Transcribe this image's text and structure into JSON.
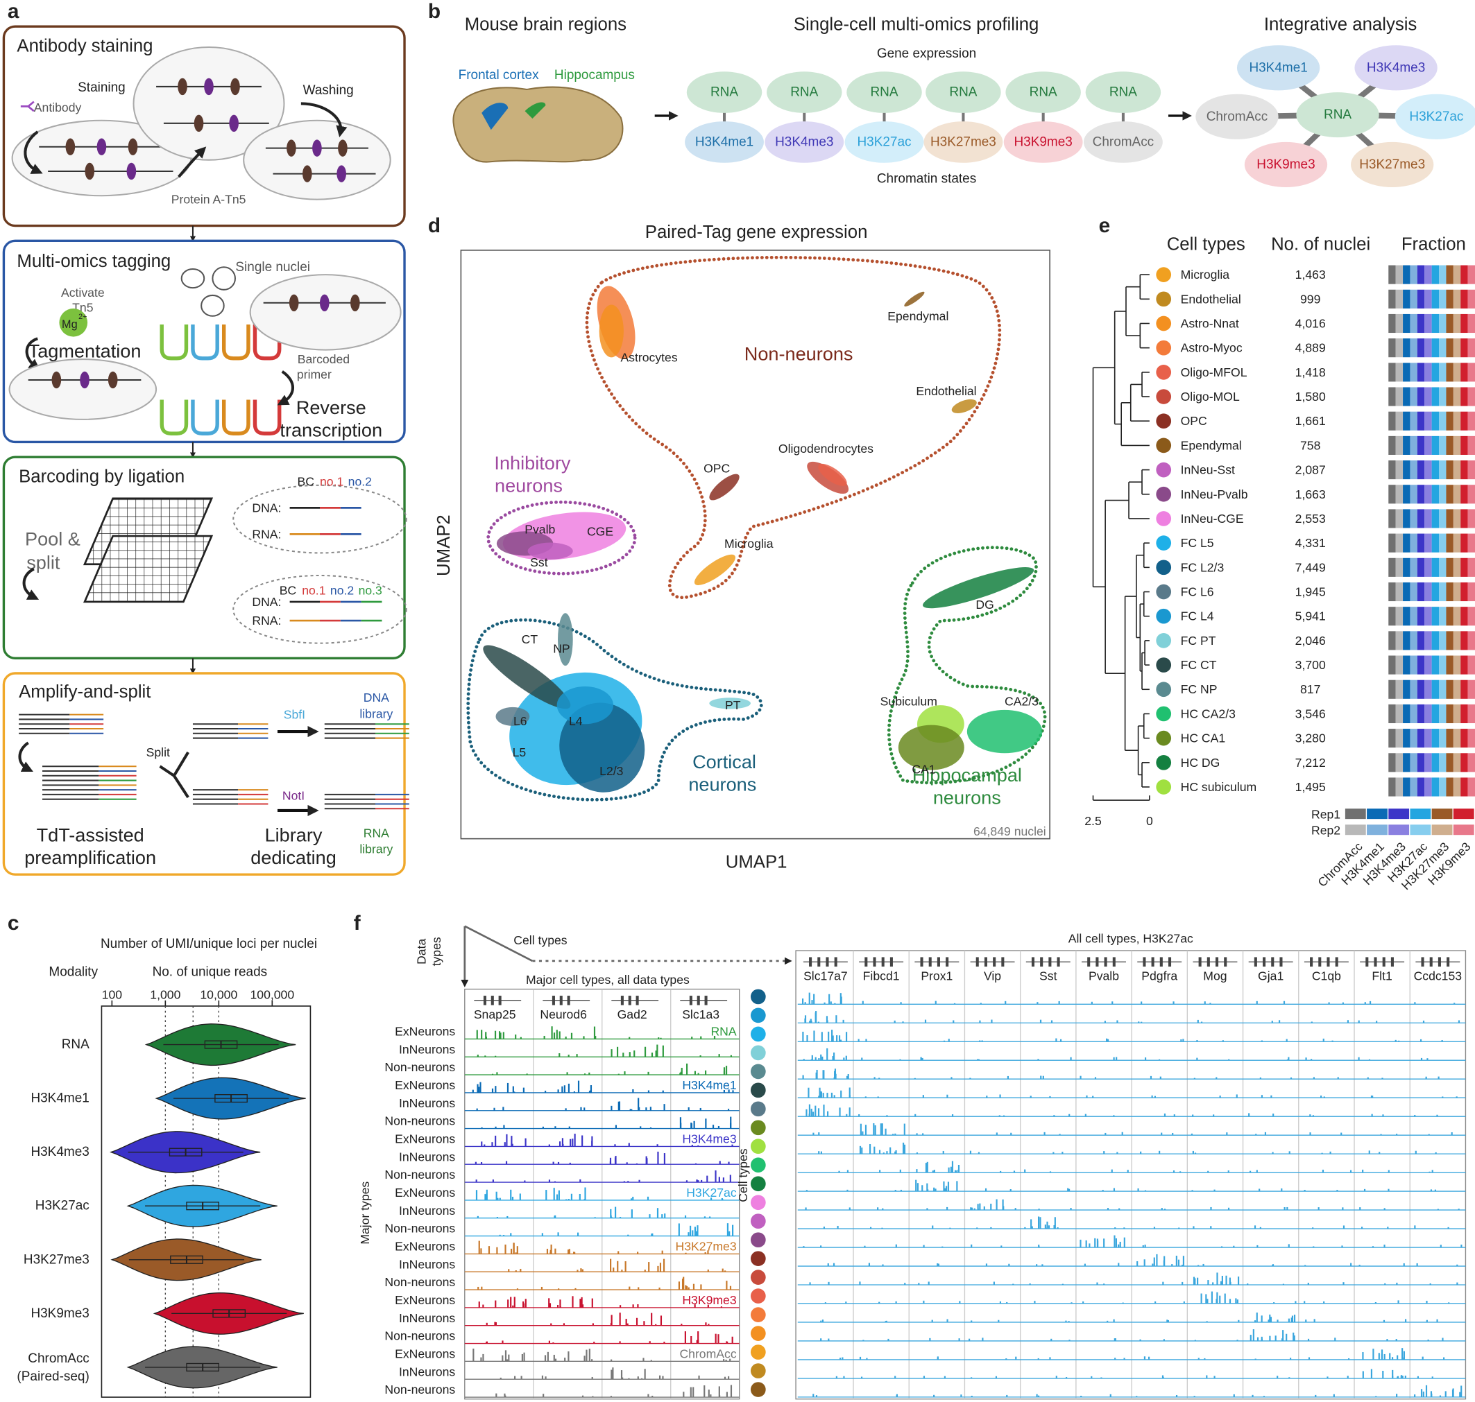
{
  "panel_a": {
    "label": "a",
    "staining": {
      "title": "Antibody staining",
      "staining": "Staining",
      "washing": "Washing",
      "antibody": "Antibody",
      "protein": "Protein A-Tn5"
    },
    "tagging": {
      "title": "Multi-omics tagging",
      "activate": [
        "Activate",
        "Tn5"
      ],
      "mg": "Mg",
      "mg_charge": "2+",
      "nuclei": "Single nuclei",
      "tagmentation": "Tagmentation",
      "primer": [
        "Barcoded",
        "primer"
      ],
      "rt": [
        "Reverse",
        "transcription"
      ]
    },
    "ligation": {
      "title": "Barcoding by ligation",
      "pool": [
        "Pool &",
        "split"
      ],
      "first": {
        "dna": "DNA:",
        "rna": "RNA:",
        "bc": "BC",
        "codes": [
          "no.1",
          "no.2"
        ]
      },
      "second": {
        "dna": "DNA:",
        "rna": "RNA:",
        "bc": "BC",
        "codes": [
          "no.1",
          "no.2",
          "no.3"
        ]
      }
    },
    "amplify": {
      "title": "Amplify-and-split",
      "split": "Split",
      "sbf": "SbfI",
      "not": "NotI",
      "dna_lib": [
        "DNA",
        "library"
      ],
      "rna_lib": [
        "RNA",
        "library"
      ],
      "preamp": [
        "TdT-assisted",
        "preamplification"
      ],
      "dedicate": [
        "Library",
        "dedicating"
      ]
    }
  },
  "panel_b": {
    "label": "b",
    "headings": [
      "Mouse brain regions",
      "Single-cell multi-omics profiling",
      "Integrative analysis"
    ],
    "regions": [
      "Frontal cortex",
      "Hippocampus"
    ],
    "top_note": "Gene expression",
    "bottom_note": "Chromatin states",
    "rna": [
      "RNA",
      "RNA",
      "RNA",
      "RNA",
      "RNA",
      "RNA"
    ],
    "marks": [
      "H3K4me1",
      "H3K4me3",
      "H3K27ac",
      "H3K27me3",
      "H3K9me3",
      "ChromAcc"
    ],
    "hub": "RNA",
    "spokes": [
      "H3K4me1",
      "H3K4me3",
      "ChromAcc",
      "H3K27ac",
      "H3K9me3",
      "H3K27me3"
    ]
  },
  "panel_c": {
    "label": "c",
    "type": "violin",
    "title": "Number of UMI/unique loci per nuclei",
    "ylabel": "Modality",
    "xlabel": "No. of unique reads",
    "xscale": "log",
    "xlim": [
      64,
      520000
    ],
    "xticks": [
      100,
      {
        "value": 1000,
        "label": "1,000"
      },
      {
        "value": 10000,
        "label": "10,000"
      },
      {
        "value": 100000,
        "label": "100,000"
      }
    ],
    "reference_lines": [
      1000,
      3300,
      10000
    ],
    "categories": [
      "RNA",
      "H3K4me1",
      "H3K4me3",
      "H3K27ac",
      "H3K27me3",
      "H3K9me3",
      "ChromAcc"
    ],
    "category_note": "(Paired-seq)",
    "medians": [
      11000,
      17000,
      2400,
      5000,
      2500,
      15600,
      5000
    ],
    "colors": [
      "#1e7a36",
      "#1473b8",
      "#3b32c8",
      "#2fa6e0",
      "#9a5a28",
      "#c8102e",
      "#666666"
    ]
  },
  "panel_d": {
    "label": "d",
    "title": "Paired-Tag gene expression",
    "xlabel": "UMAP1",
    "ylabel": "UMAP2",
    "note": "64,849 nuclei",
    "groups": [
      {
        "name": [
          "Non-neurons"
        ],
        "clusters": [
          "Astrocytes",
          "Ependymal",
          "Endothelial",
          "Oligodendrocytes",
          "OPC",
          "Microglia"
        ]
      },
      {
        "name": [
          "Inhibitory",
          "neurons"
        ],
        "clusters": [
          "Pvalb",
          "CGE",
          "Sst"
        ]
      },
      {
        "name": [
          "Cortical",
          "neurons"
        ],
        "clusters": [
          "CT",
          "NP",
          "L6",
          "L4",
          "L5",
          "L2/3",
          "PT"
        ]
      },
      {
        "name": [
          "Hippocampal",
          "neurons"
        ],
        "clusters": [
          "DG",
          "Subiculum",
          "CA2/3",
          "CA1"
        ]
      }
    ]
  },
  "panel_e": {
    "label": "e",
    "headers": [
      "Cell types",
      "No. of nuclei",
      "Fraction"
    ],
    "cell_types": [
      "Microglia",
      "Endothelial",
      "Astro-Nnat",
      "Astro-Myoc",
      "Oligo-MFOL",
      "Oligo-MOL",
      "OPC",
      "Ependymal",
      "InNeu-Sst",
      "InNeu-Pvalb",
      "InNeu-CGE",
      "FC L5",
      "FC L2/3",
      "FC L6",
      "FC L4",
      "FC PT",
      "FC CT",
      "FC NP",
      "HC CA2/3",
      "HC CA1",
      "HC DG",
      "HC subiculum"
    ],
    "nuclei": [
      "1,463",
      "999",
      "4,016",
      "4,889",
      "1,418",
      "1,580",
      "1,661",
      "758",
      "2,087",
      "1,663",
      "2,553",
      "4,331",
      "7,449",
      "1,945",
      "5,941",
      "2,046",
      "3,700",
      "817",
      "3,546",
      "3,280",
      "7,212",
      "1,495"
    ],
    "colors": [
      "#f0a020",
      "#c08a20",
      "#f39020",
      "#f37b3a",
      "#e8604a",
      "#c84b3c",
      "#8b3023",
      "#8b5a1a",
      "#c060c0",
      "#8a4a8a",
      "#ee80e0",
      "#1eb0e8",
      "#12608a",
      "#5a7a8a",
      "#1a98d0",
      "#80d0d8",
      "#2a4a4a",
      "#5a8a90",
      "#20c070",
      "#6a8a20",
      "#148040",
      "#a0e040"
    ],
    "scale": [
      2.5,
      0
    ],
    "legend": {
      "rows": [
        "Rep1",
        "Rep2"
      ],
      "modalities": [
        "ChromAcc",
        "H3K4me1",
        "H3K4me3",
        "H3K27ac",
        "H3K27me3",
        "H3K9me3"
      ],
      "rep1_colors": [
        "#707070",
        "#0a6ab5",
        "#3c35c8",
        "#23a5e0",
        "#9a5a28",
        "#d11f2e"
      ],
      "rep2_colors": [
        "#b8b8b8",
        "#7fb1dd",
        "#8a80e0",
        "#86cdee",
        "#cfae8e",
        "#e8788a"
      ]
    }
  },
  "panel_f": {
    "label": "f",
    "data_types": [
      "Data",
      "types"
    ],
    "cell_types_axis": "Cell types",
    "left_title": "Major cell types, all data types",
    "left_genes": [
      "Snap25",
      "Neurod6",
      "Gad2",
      "Slc1a3"
    ],
    "majors": [
      "ExNeurons",
      "InNeurons",
      "Non-neurons"
    ],
    "modalities": [
      "RNA",
      "H3K4me1",
      "H3K4me3",
      "H3K27ac",
      "H3K27me3",
      "H3K9me3",
      "ChromAcc"
    ],
    "track_colors": [
      "#2e9a3e",
      "#0a6ab5",
      "#3c35c8",
      "#2fa6e0",
      "#c8782a",
      "#c8102e",
      "#777777"
    ],
    "left_axis": "Major types",
    "right_title": "All cell types, H3K27ac",
    "right_genes": [
      "Slc17a7",
      "Fibcd1",
      "Prox1",
      "Vip",
      "Sst",
      "Pvalb",
      "Pdgfra",
      "Mog",
      "Gja1",
      "C1qb",
      "Flt1",
      "Ccdc153"
    ],
    "right_axis": "Cell types",
    "right_color": "#3aa6dd"
  }
}
